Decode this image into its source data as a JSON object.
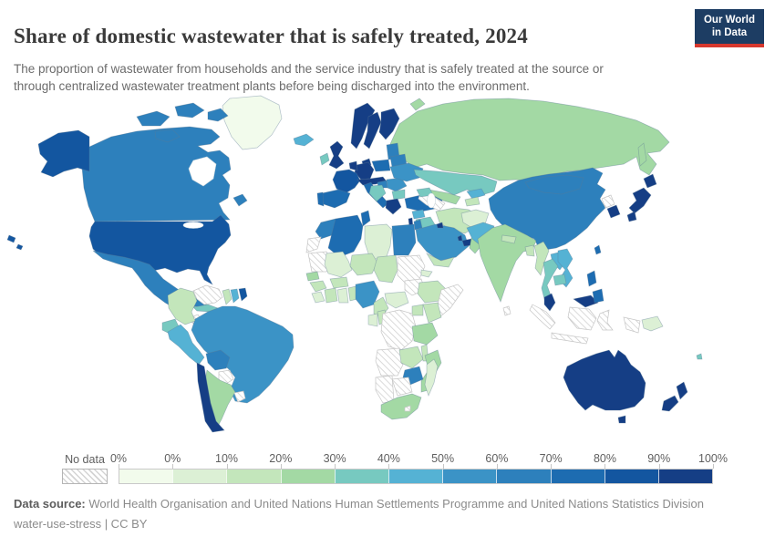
{
  "header": {
    "title": "Share of domestic wastewater that is safely treated, 2024",
    "subtitle": "The proportion of wastewater from households and the service industry that is safely treated at the source or through centralized wastewater treatment plants before being discharged into the environment.",
    "logo": {
      "line1": "Our World",
      "line2": "in Data",
      "bg_color": "#1d3d63",
      "accent_color": "#d7382e"
    }
  },
  "legend": {
    "no_data_label": "No data"
  },
  "footer": {
    "source_label": "Data source:",
    "source_text": "World Health Organisation and United Nations Human Settlements Programme and United Nations Statistics Division",
    "license_line": "water-use-stress | CC BY"
  },
  "chart_data": {
    "type": "heatmap",
    "subtype": "choropleth-world-map",
    "title": "Share of domestic wastewater that is safely treated, 2024",
    "unit": "% of domestic wastewater safely treated",
    "no_data": {
      "label": "No data",
      "pattern": "diagonal-hatch"
    },
    "tick_labels": [
      "0%",
      "0%",
      "10%",
      "20%",
      "30%",
      "40%",
      "50%",
      "60%",
      "70%",
      "80%",
      "90%",
      "100%"
    ],
    "bins": [
      {
        "range": "0%",
        "color": "#f2fbec"
      },
      {
        "range": "0–10%",
        "color": "#dcf0d5"
      },
      {
        "range": "10–20%",
        "color": "#c3e6bb"
      },
      {
        "range": "20–30%",
        "color": "#a3d9a4"
      },
      {
        "range": "30–40%",
        "color": "#77c9c0"
      },
      {
        "range": "40–50%",
        "color": "#55b2d4"
      },
      {
        "range": "50–60%",
        "color": "#3b93c6"
      },
      {
        "range": "60–70%",
        "color": "#2d80bc"
      },
      {
        "range": "70–80%",
        "color": "#1d6cb1"
      },
      {
        "range": "80–90%",
        "color": "#1356a0"
      },
      {
        "range": "90–100%",
        "color": "#153e85"
      }
    ],
    "regions": {
      "greenland": 0,
      "canada": 7,
      "usa": 9,
      "mexico": 7,
      "guatemala": "no-data",
      "honduras": 2,
      "nicaragua": 3,
      "costa-rica": 3,
      "panama": 4,
      "cuba": 4,
      "haiti": "no-data",
      "dominican-republic": 5,
      "jamaica": "no-data",
      "colombia": 2,
      "venezuela": "no-data",
      "guyana": 2,
      "suriname": 5,
      "french-guiana": 9,
      "ecuador": 4,
      "peru": 5,
      "brazil": 6,
      "bolivia": 7,
      "paraguay": "no-data",
      "chile": 10,
      "argentina": 3,
      "uruguay": "no-data",
      "iceland": 5,
      "united-kingdom": 10,
      "ireland": 4,
      "norway": 10,
      "sweden": 10,
      "finland": 10,
      "denmark": 10,
      "germany": 10,
      "benelux": 10,
      "france": 9,
      "spain": 8,
      "portugal": 8,
      "italy": 8,
      "alpine-states": 10,
      "poland": 8,
      "baltics": 7,
      "belarus": 7,
      "ukraine": 6,
      "romania": 6,
      "hungary": 7,
      "balkans": 4,
      "bulgaria": 4,
      "greece": 10,
      "turkey": 8,
      "russia": 3,
      "kazakhstan": 4,
      "uzbekistan": 3,
      "turkmenistan": "no-data",
      "kyrgyzstan": 5,
      "tajikistan": 2,
      "caucasus": 4,
      "syria": 5,
      "iraq": 4,
      "israel": 10,
      "jordan": 7,
      "saudi-arabia": 6,
      "kuwait": 10,
      "qatar": 10,
      "uae": 10,
      "oman": 3,
      "yemen": 2,
      "iran": 2,
      "afghanistan": 1,
      "pakistan": 5,
      "india": 3,
      "nepal": 2,
      "bangladesh": 2,
      "sri-lanka": "no-data",
      "myanmar": 2,
      "thailand": 4,
      "laos": 5,
      "vietnam": 5,
      "cambodia": 4,
      "malaysia": 10,
      "indonesia": "no-data",
      "philippines": 8,
      "papua-new-guinea": 1,
      "fiji": 4,
      "china": 7,
      "mongolia": 7,
      "north-korea": "no-data",
      "south-korea": 10,
      "japan": 10,
      "taiwan": 8,
      "morocco": 7,
      "western-sahara": "no-data",
      "algeria": 8,
      "tunisia": 8,
      "libya": 1,
      "egypt": 7,
      "mauritania": "no-data",
      "mali": 1,
      "niger": 2,
      "chad": 2,
      "sudan": "no-data",
      "eritrea": 1,
      "senegal": 3,
      "guinea": 2,
      "sierra-leone": 1,
      "ivory-coast": 2,
      "ghana": 1,
      "benin": 2,
      "burkina-faso": 2,
      "nigeria": 6,
      "cameroon": 2,
      "central-african-republic": 1,
      "south-sudan": "no-data",
      "ethiopia": 2,
      "somalia": "no-data",
      "kenya": 2,
      "uganda": 2,
      "dr-congo": "no-data",
      "gabon": 1,
      "congo": 2,
      "tanzania": 3,
      "angola": "no-data",
      "zambia": 2,
      "malawi": 2,
      "mozambique": 3,
      "zimbabwe": 7,
      "botswana": "no-data",
      "namibia": "no-data",
      "south-africa": 3,
      "lesotho": "no-data",
      "madagascar": 1,
      "australia": 10,
      "new-zealand": 10
    }
  }
}
